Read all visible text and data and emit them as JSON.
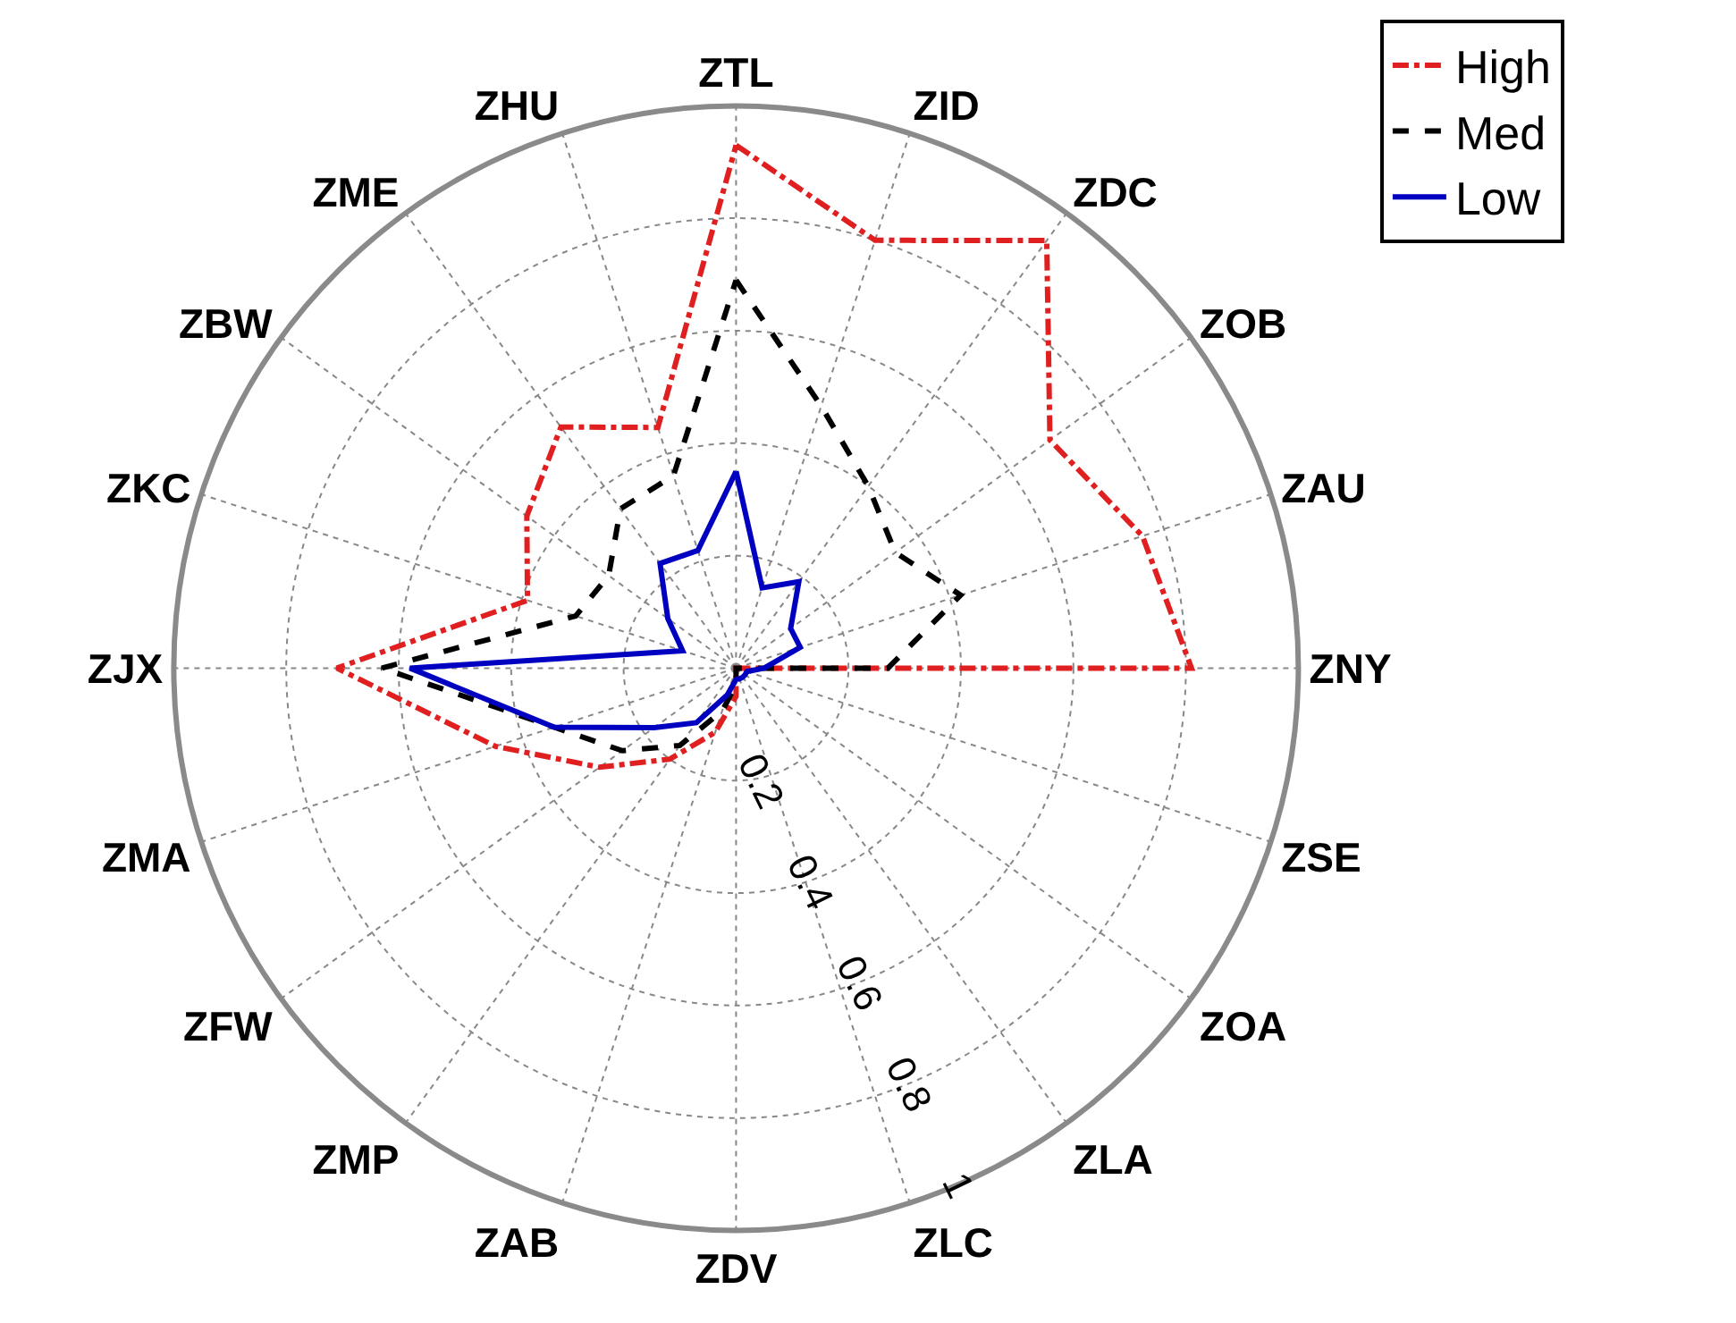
{
  "chart_data": {
    "type": "radar",
    "categories": [
      "ZTL",
      "ZID",
      "ZDC",
      "ZOB",
      "ZAU",
      "ZNY",
      "ZSE",
      "ZOA",
      "ZLA",
      "ZLC",
      "ZDV",
      "ZAB",
      "ZMP",
      "ZFW",
      "ZMA",
      "ZJX",
      "ZKC",
      "ZBW",
      "ZME",
      "ZHU"
    ],
    "ylim": [
      0,
      1
    ],
    "yticks": [
      0.2,
      0.4,
      0.6,
      0.8,
      1
    ],
    "grid": true,
    "legend": "top right",
    "series": [
      {
        "name": "High",
        "color": "#e02020",
        "line_style": "dashdot",
        "values": [
          0.93,
          0.8,
          0.94,
          0.69,
          0.76,
          0.81,
          0,
          0,
          0,
          0,
          0.05,
          0.12,
          0.2,
          0.3,
          0.45,
          0.71,
          0.39,
          0.46,
          0.53,
          0.45
        ]
      },
      {
        "name": "Med",
        "color": "#000000",
        "line_style": "dashed",
        "values": [
          0.69,
          0.49,
          0.4,
          0.35,
          0.42,
          0.27,
          0,
          0,
          0,
          0,
          0.03,
          0.08,
          0.17,
          0.25,
          0.34,
          0.63,
          0.3,
          0.28,
          0.35,
          0.36
        ]
      },
      {
        "name": "Low",
        "color": "#0000c0",
        "line_style": "solid",
        "values": [
          0.35,
          0.15,
          0.19,
          0.12,
          0.12,
          0.05,
          0.02,
          0.02,
          0.02,
          0.02,
          0.02,
          0.05,
          0.12,
          0.18,
          0.34,
          0.58,
          0.1,
          0.15,
          0.23,
          0.22
        ]
      }
    ]
  }
}
